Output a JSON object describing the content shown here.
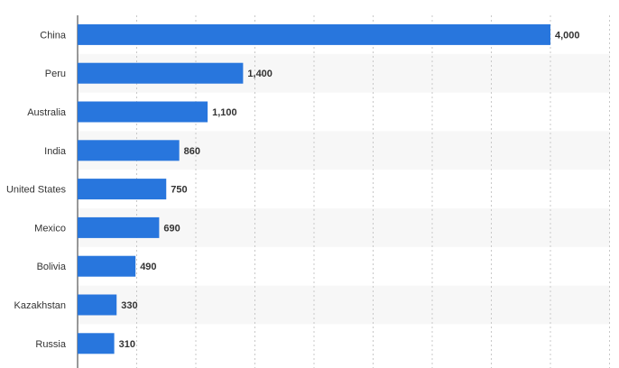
{
  "chart_data": {
    "type": "bar",
    "orientation": "horizontal",
    "title": "",
    "xlabel": "",
    "ylabel": "",
    "categories": [
      "China",
      "Peru",
      "Australia",
      "India",
      "United States",
      "Mexico",
      "Bolivia",
      "Kazakhstan",
      "Russia"
    ],
    "values": [
      4000,
      1400,
      1100,
      860,
      750,
      690,
      490,
      330,
      310
    ],
    "value_labels": [
      "4,000",
      "1,400",
      "1,100",
      "860",
      "750",
      "690",
      "490",
      "330",
      "310"
    ],
    "xlim": [
      0,
      4500
    ],
    "grid": true,
    "grid_style": "dotted vertical",
    "legend": false,
    "bar_color": "#2876dd",
    "stripe_color": "#f7f7f7"
  }
}
